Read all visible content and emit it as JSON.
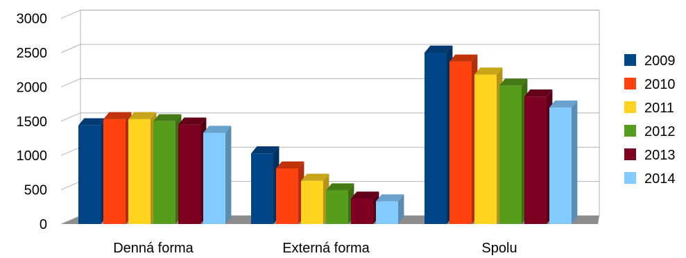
{
  "chart_data": {
    "type": "bar",
    "style": "3d-clustered",
    "categories": [
      "Denná forma",
      "Externá forma",
      "Spolu"
    ],
    "series": [
      {
        "name": "2009",
        "color": "#004586",
        "side": "#00325f",
        "top": "#003a70",
        "values": [
          1440,
          1030,
          2500
        ]
      },
      {
        "name": "2010",
        "color": "#ff420e",
        "side": "#b22e0a",
        "top": "#c2330b",
        "values": [
          1530,
          810,
          2370
        ]
      },
      {
        "name": "2011",
        "color": "#ffd320",
        "side": "#b39416",
        "top": "#c9a619",
        "values": [
          1530,
          630,
          2180
        ]
      },
      {
        "name": "2012",
        "color": "#579d1c",
        "side": "#3d6e14",
        "top": "#447b16",
        "values": [
          1500,
          490,
          2020
        ]
      },
      {
        "name": "2013",
        "color": "#7e0021",
        "side": "#580017",
        "top": "#64001a",
        "values": [
          1450,
          370,
          1860
        ]
      },
      {
        "name": "2014",
        "color": "#83caff",
        "side": "#5b8db3",
        "top": "#69a2cc",
        "values": [
          1330,
          330,
          1700
        ]
      }
    ],
    "yticks": [
      "0",
      "500",
      "1000",
      "1500",
      "2000",
      "2500",
      "3000"
    ],
    "ylim": [
      0,
      3000
    ],
    "grid": true,
    "legend": "right"
  }
}
